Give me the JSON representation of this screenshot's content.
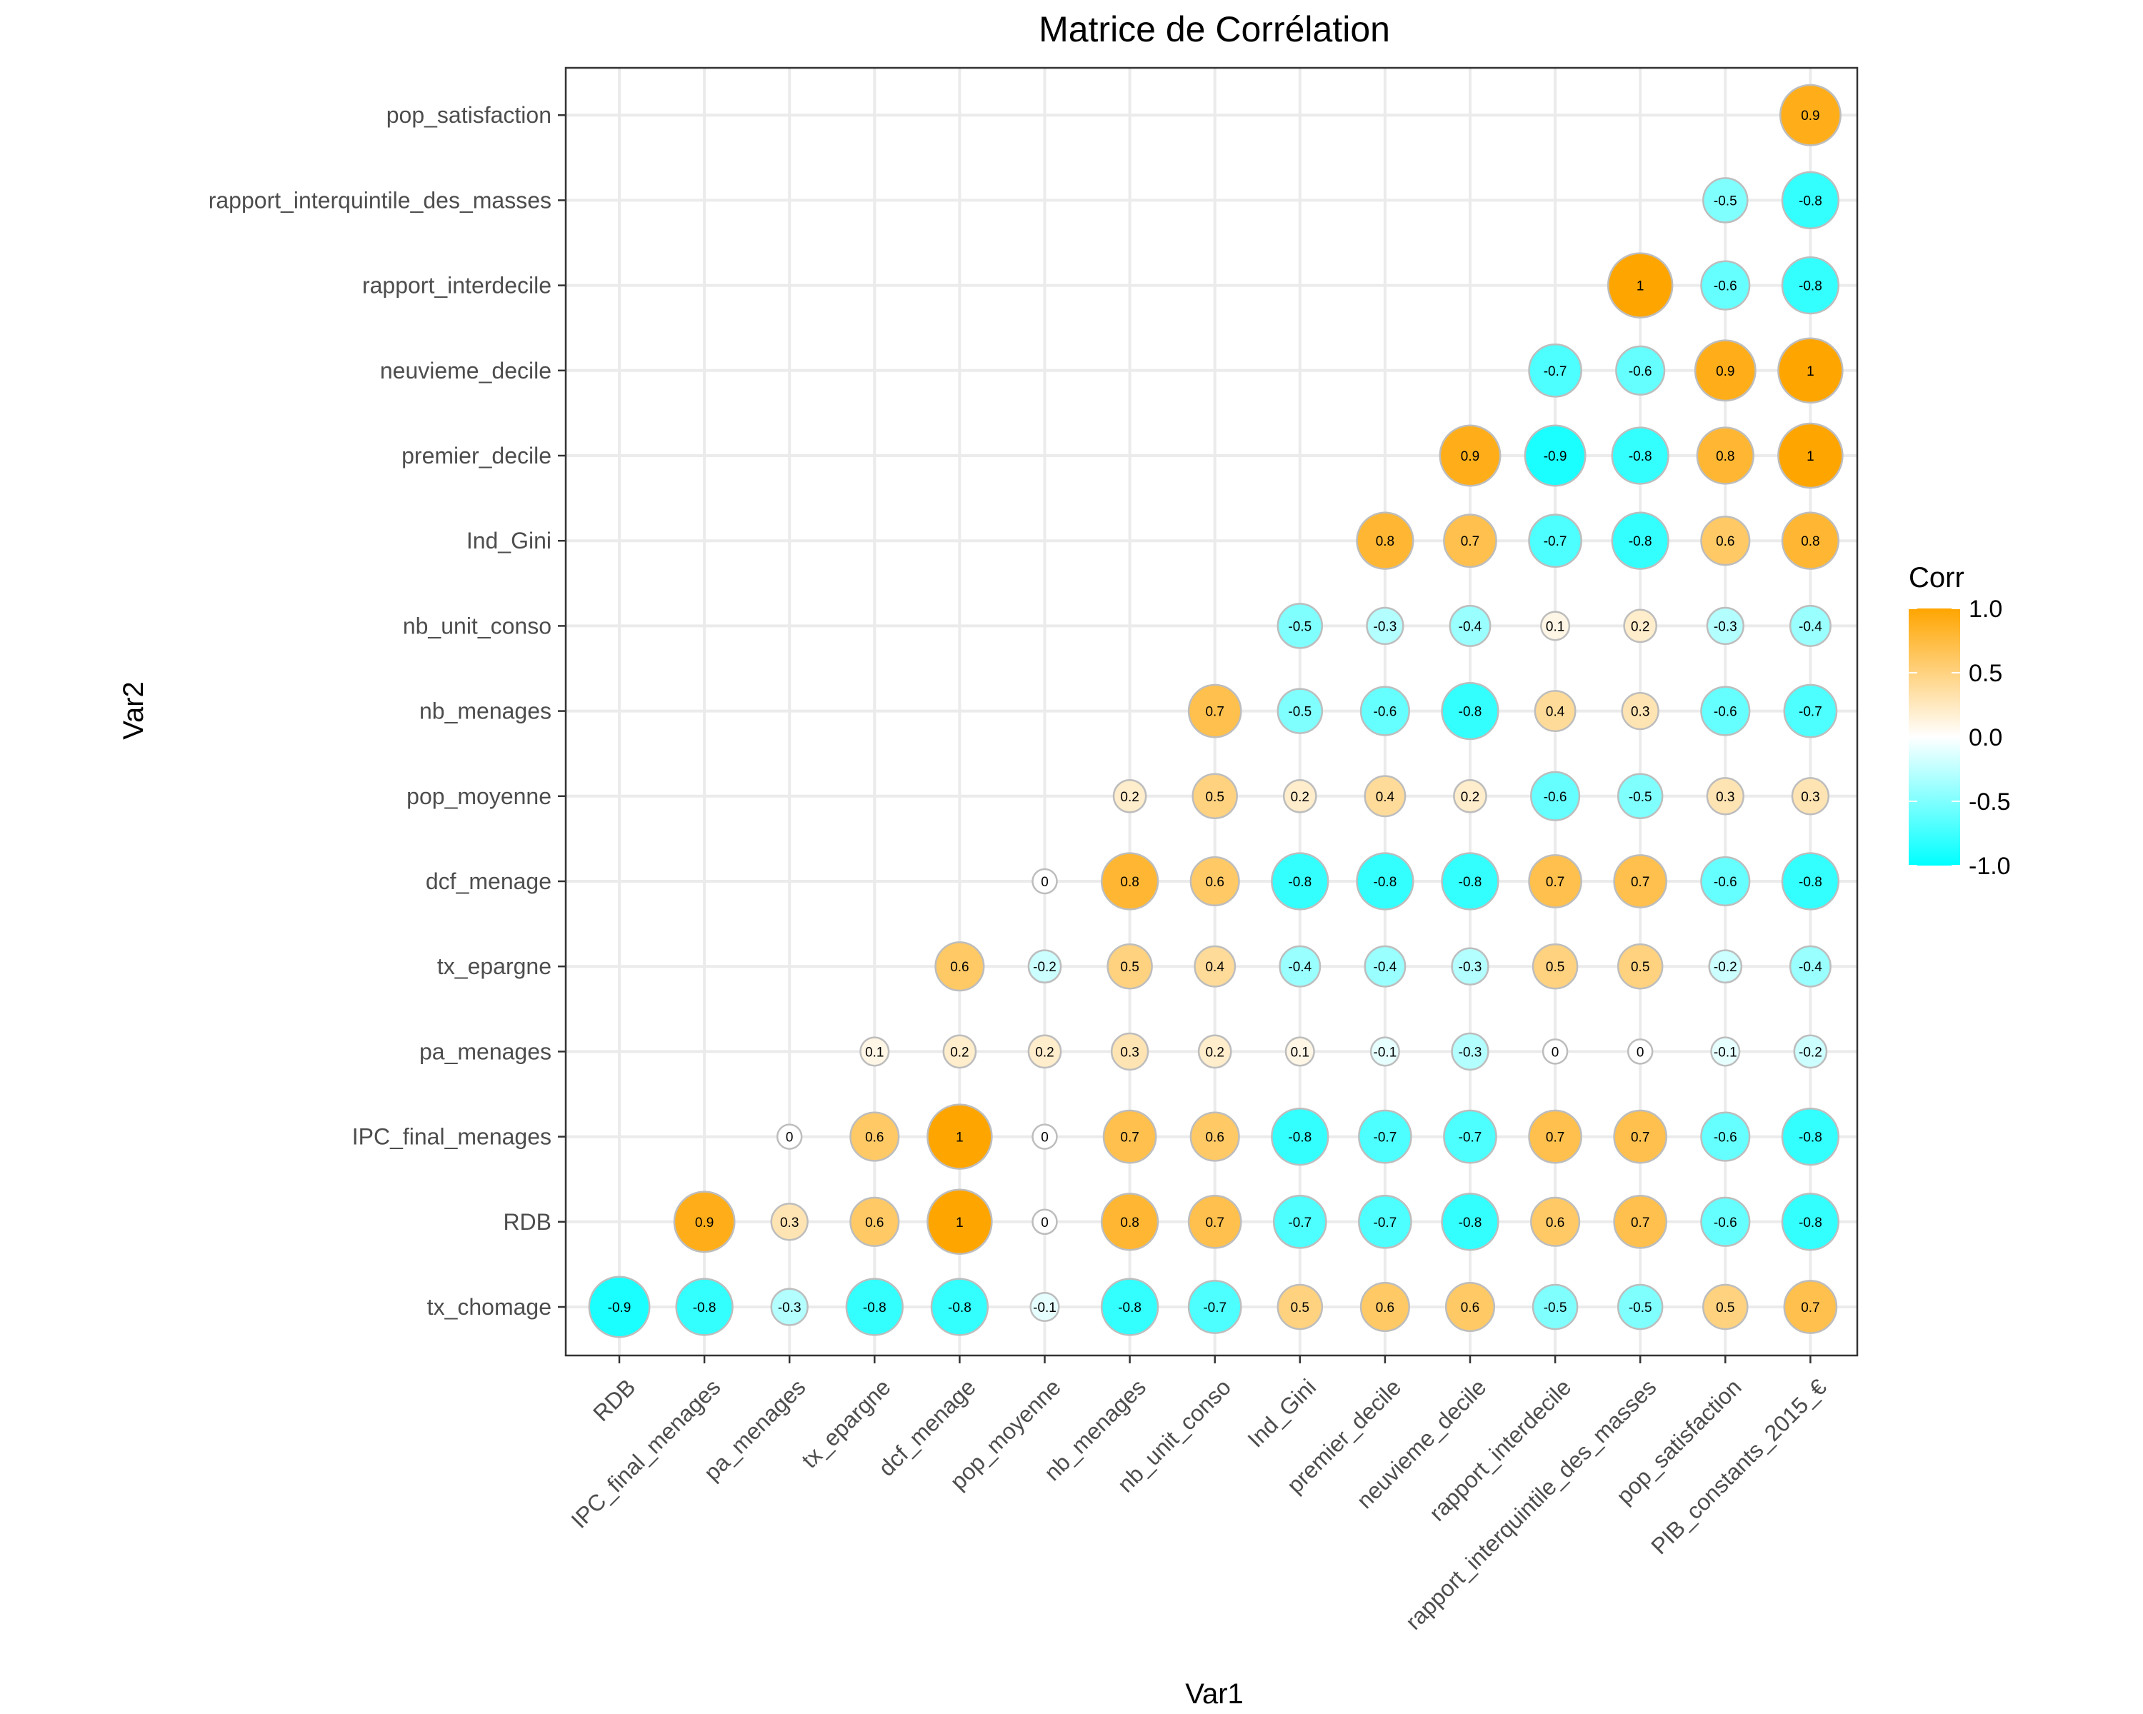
{
  "chart_data": {
    "type": "heatmap",
    "title": "Matrice de Corrélation",
    "xlabel": "Var1",
    "ylabel": "Var2",
    "x_categories": [
      "RDB",
      "IPC_final_menages",
      "pa_menages",
      "tx_epargne",
      "dcf_menage",
      "pop_moyenne",
      "nb_menages",
      "nb_unit_conso",
      "Ind_Gini",
      "premier_decile",
      "neuvieme_decile",
      "rapport_interdecile",
      "rapport_interquintile_des_masses",
      "pop_satisfaction",
      "PIB_constants_2015_€"
    ],
    "y_categories": [
      "tx_chomage",
      "RDB",
      "IPC_final_menages",
      "pa_menages",
      "tx_epargne",
      "dcf_menage",
      "pop_moyenne",
      "nb_menages",
      "nb_unit_conso",
      "Ind_Gini",
      "premier_decile",
      "neuvieme_decile",
      "rapport_interdecile",
      "rapport_interquintile_des_masses",
      "pop_satisfaction"
    ],
    "marker": "circle (size and color scale with |corr|)",
    "legend": {
      "title": "Corr",
      "placement": "right",
      "ticks": [
        "1.0",
        "0.5",
        "0.0",
        "-0.5",
        "-1.0"
      ],
      "colors": {
        "high": "#FFA500",
        "mid": "#FFFFFF",
        "low": "#00FFFF"
      },
      "range": [
        -1,
        1
      ]
    },
    "values": [
      {
        "x": "RDB",
        "y": "tx_chomage",
        "value": -0.9
      },
      {
        "x": "IPC_final_menages",
        "y": "RDB",
        "value": 0.9
      },
      {
        "x": "IPC_final_menages",
        "y": "tx_chomage",
        "value": -0.8
      },
      {
        "x": "pa_menages",
        "y": "IPC_final_menages",
        "value": 0
      },
      {
        "x": "pa_menages",
        "y": "RDB",
        "value": 0.3
      },
      {
        "x": "pa_menages",
        "y": "tx_chomage",
        "value": -0.3
      },
      {
        "x": "tx_epargne",
        "y": "pa_menages",
        "value": 0.1
      },
      {
        "x": "tx_epargne",
        "y": "IPC_final_menages",
        "value": 0.6
      },
      {
        "x": "tx_epargne",
        "y": "RDB",
        "value": 0.6
      },
      {
        "x": "tx_epargne",
        "y": "tx_chomage",
        "value": -0.8
      },
      {
        "x": "dcf_menage",
        "y": "tx_epargne",
        "value": 0.6
      },
      {
        "x": "dcf_menage",
        "y": "pa_menages",
        "value": 0.2
      },
      {
        "x": "dcf_menage",
        "y": "IPC_final_menages",
        "value": 1
      },
      {
        "x": "dcf_menage",
        "y": "RDB",
        "value": 1
      },
      {
        "x": "dcf_menage",
        "y": "tx_chomage",
        "value": -0.8
      },
      {
        "x": "pop_moyenne",
        "y": "dcf_menage",
        "value": 0
      },
      {
        "x": "pop_moyenne",
        "y": "tx_epargne",
        "value": -0.2
      },
      {
        "x": "pop_moyenne",
        "y": "pa_menages",
        "value": 0.2
      },
      {
        "x": "pop_moyenne",
        "y": "IPC_final_menages",
        "value": 0
      },
      {
        "x": "pop_moyenne",
        "y": "RDB",
        "value": 0
      },
      {
        "x": "pop_moyenne",
        "y": "tx_chomage",
        "value": -0.1
      },
      {
        "x": "nb_menages",
        "y": "pop_moyenne",
        "value": 0.2
      },
      {
        "x": "nb_menages",
        "y": "dcf_menage",
        "value": 0.8
      },
      {
        "x": "nb_menages",
        "y": "tx_epargne",
        "value": 0.5
      },
      {
        "x": "nb_menages",
        "y": "pa_menages",
        "value": 0.3
      },
      {
        "x": "nb_menages",
        "y": "IPC_final_menages",
        "value": 0.7
      },
      {
        "x": "nb_menages",
        "y": "RDB",
        "value": 0.8
      },
      {
        "x": "nb_menages",
        "y": "tx_chomage",
        "value": -0.8
      },
      {
        "x": "nb_unit_conso",
        "y": "nb_menages",
        "value": 0.7
      },
      {
        "x": "nb_unit_conso",
        "y": "pop_moyenne",
        "value": 0.5
      },
      {
        "x": "nb_unit_conso",
        "y": "dcf_menage",
        "value": 0.6
      },
      {
        "x": "nb_unit_conso",
        "y": "tx_epargne",
        "value": 0.4
      },
      {
        "x": "nb_unit_conso",
        "y": "pa_menages",
        "value": 0.2
      },
      {
        "x": "nb_unit_conso",
        "y": "IPC_final_menages",
        "value": 0.6
      },
      {
        "x": "nb_unit_conso",
        "y": "RDB",
        "value": 0.7
      },
      {
        "x": "nb_unit_conso",
        "y": "tx_chomage",
        "value": -0.7
      },
      {
        "x": "Ind_Gini",
        "y": "nb_unit_conso",
        "value": -0.5
      },
      {
        "x": "Ind_Gini",
        "y": "nb_menages",
        "value": -0.5
      },
      {
        "x": "Ind_Gini",
        "y": "pop_moyenne",
        "value": 0.2
      },
      {
        "x": "Ind_Gini",
        "y": "dcf_menage",
        "value": -0.8
      },
      {
        "x": "Ind_Gini",
        "y": "tx_epargne",
        "value": -0.4
      },
      {
        "x": "Ind_Gini",
        "y": "pa_menages",
        "value": 0.1
      },
      {
        "x": "Ind_Gini",
        "y": "IPC_final_menages",
        "value": -0.8
      },
      {
        "x": "Ind_Gini",
        "y": "RDB",
        "value": -0.7
      },
      {
        "x": "Ind_Gini",
        "y": "tx_chomage",
        "value": 0.5
      },
      {
        "x": "premier_decile",
        "y": "Ind_Gini",
        "value": 0.8
      },
      {
        "x": "premier_decile",
        "y": "nb_unit_conso",
        "value": -0.3
      },
      {
        "x": "premier_decile",
        "y": "nb_menages",
        "value": -0.6
      },
      {
        "x": "premier_decile",
        "y": "pop_moyenne",
        "value": 0.4
      },
      {
        "x": "premier_decile",
        "y": "dcf_menage",
        "value": -0.8
      },
      {
        "x": "premier_decile",
        "y": "tx_epargne",
        "value": -0.4
      },
      {
        "x": "premier_decile",
        "y": "pa_menages",
        "value": -0.1
      },
      {
        "x": "premier_decile",
        "y": "IPC_final_menages",
        "value": -0.7
      },
      {
        "x": "premier_decile",
        "y": "RDB",
        "value": -0.7
      },
      {
        "x": "premier_decile",
        "y": "tx_chomage",
        "value": 0.6
      },
      {
        "x": "neuvieme_decile",
        "y": "premier_decile",
        "value": 0.9
      },
      {
        "x": "neuvieme_decile",
        "y": "Ind_Gini",
        "value": 0.7
      },
      {
        "x": "neuvieme_decile",
        "y": "nb_unit_conso",
        "value": -0.4
      },
      {
        "x": "neuvieme_decile",
        "y": "nb_menages",
        "value": -0.8
      },
      {
        "x": "neuvieme_decile",
        "y": "pop_moyenne",
        "value": 0.2
      },
      {
        "x": "neuvieme_decile",
        "y": "dcf_menage",
        "value": -0.8
      },
      {
        "x": "neuvieme_decile",
        "y": "tx_epargne",
        "value": -0.3
      },
      {
        "x": "neuvieme_decile",
        "y": "pa_menages",
        "value": -0.3
      },
      {
        "x": "neuvieme_decile",
        "y": "IPC_final_menages",
        "value": -0.7
      },
      {
        "x": "neuvieme_decile",
        "y": "RDB",
        "value": -0.8
      },
      {
        "x": "neuvieme_decile",
        "y": "tx_chomage",
        "value": 0.6
      },
      {
        "x": "rapport_interdecile",
        "y": "neuvieme_decile",
        "value": -0.7
      },
      {
        "x": "rapport_interdecile",
        "y": "premier_decile",
        "value": -0.9
      },
      {
        "x": "rapport_interdecile",
        "y": "Ind_Gini",
        "value": -0.7
      },
      {
        "x": "rapport_interdecile",
        "y": "nb_unit_conso",
        "value": 0.1
      },
      {
        "x": "rapport_interdecile",
        "y": "nb_menages",
        "value": 0.4
      },
      {
        "x": "rapport_interdecile",
        "y": "pop_moyenne",
        "value": -0.6
      },
      {
        "x": "rapport_interdecile",
        "y": "dcf_menage",
        "value": 0.7
      },
      {
        "x": "rapport_interdecile",
        "y": "tx_epargne",
        "value": 0.5
      },
      {
        "x": "rapport_interdecile",
        "y": "pa_menages",
        "value": 0
      },
      {
        "x": "rapport_interdecile",
        "y": "IPC_final_menages",
        "value": 0.7
      },
      {
        "x": "rapport_interdecile",
        "y": "RDB",
        "value": 0.6
      },
      {
        "x": "rapport_interdecile",
        "y": "tx_chomage",
        "value": -0.5
      },
      {
        "x": "rapport_interquintile_des_masses",
        "y": "rapport_interdecile",
        "value": 1
      },
      {
        "x": "rapport_interquintile_des_masses",
        "y": "neuvieme_decile",
        "value": -0.6
      },
      {
        "x": "rapport_interquintile_des_masses",
        "y": "premier_decile",
        "value": -0.8
      },
      {
        "x": "rapport_interquintile_des_masses",
        "y": "Ind_Gini",
        "value": -0.8
      },
      {
        "x": "rapport_interquintile_des_masses",
        "y": "nb_unit_conso",
        "value": 0.2
      },
      {
        "x": "rapport_interquintile_des_masses",
        "y": "nb_menages",
        "value": 0.3
      },
      {
        "x": "rapport_interquintile_des_masses",
        "y": "pop_moyenne",
        "value": -0.5
      },
      {
        "x": "rapport_interquintile_des_masses",
        "y": "dcf_menage",
        "value": 0.7
      },
      {
        "x": "rapport_interquintile_des_masses",
        "y": "tx_epargne",
        "value": 0.5
      },
      {
        "x": "rapport_interquintile_des_masses",
        "y": "pa_menages",
        "value": 0
      },
      {
        "x": "rapport_interquintile_des_masses",
        "y": "IPC_final_menages",
        "value": 0.7
      },
      {
        "x": "rapport_interquintile_des_masses",
        "y": "RDB",
        "value": 0.7
      },
      {
        "x": "rapport_interquintile_des_masses",
        "y": "tx_chomage",
        "value": -0.5
      },
      {
        "x": "pop_satisfaction",
        "y": "rapport_interquintile_des_masses",
        "value": -0.5
      },
      {
        "x": "pop_satisfaction",
        "y": "rapport_interdecile",
        "value": -0.6
      },
      {
        "x": "pop_satisfaction",
        "y": "neuvieme_decile",
        "value": 0.9
      },
      {
        "x": "pop_satisfaction",
        "y": "premier_decile",
        "value": 0.8
      },
      {
        "x": "pop_satisfaction",
        "y": "Ind_Gini",
        "value": 0.6
      },
      {
        "x": "pop_satisfaction",
        "y": "nb_unit_conso",
        "value": -0.3
      },
      {
        "x": "pop_satisfaction",
        "y": "nb_menages",
        "value": -0.6
      },
      {
        "x": "pop_satisfaction",
        "y": "pop_moyenne",
        "value": 0.3
      },
      {
        "x": "pop_satisfaction",
        "y": "dcf_menage",
        "value": -0.6
      },
      {
        "x": "pop_satisfaction",
        "y": "tx_epargne",
        "value": -0.2
      },
      {
        "x": "pop_satisfaction",
        "y": "pa_menages",
        "value": -0.1
      },
      {
        "x": "pop_satisfaction",
        "y": "IPC_final_menages",
        "value": -0.6
      },
      {
        "x": "pop_satisfaction",
        "y": "RDB",
        "value": -0.6
      },
      {
        "x": "pop_satisfaction",
        "y": "tx_chomage",
        "value": 0.5
      },
      {
        "x": "PIB_constants_2015_€",
        "y": "pop_satisfaction",
        "value": 0.9
      },
      {
        "x": "PIB_constants_2015_€",
        "y": "rapport_interquintile_des_masses",
        "value": -0.8
      },
      {
        "x": "PIB_constants_2015_€",
        "y": "rapport_interdecile",
        "value": -0.8
      },
      {
        "x": "PIB_constants_2015_€",
        "y": "neuvieme_decile",
        "value": 1
      },
      {
        "x": "PIB_constants_2015_€",
        "y": "premier_decile",
        "value": 1
      },
      {
        "x": "PIB_constants_2015_€",
        "y": "Ind_Gini",
        "value": 0.8
      },
      {
        "x": "PIB_constants_2015_€",
        "y": "nb_unit_conso",
        "value": -0.4
      },
      {
        "x": "PIB_constants_2015_€",
        "y": "nb_menages",
        "value": -0.7
      },
      {
        "x": "PIB_constants_2015_€",
        "y": "pop_moyenne",
        "value": 0.3
      },
      {
        "x": "PIB_constants_2015_€",
        "y": "dcf_menage",
        "value": -0.8
      },
      {
        "x": "PIB_constants_2015_€",
        "y": "tx_epargne",
        "value": -0.4
      },
      {
        "x": "PIB_constants_2015_€",
        "y": "pa_menages",
        "value": -0.2
      },
      {
        "x": "PIB_constants_2015_€",
        "y": "IPC_final_menages",
        "value": -0.8
      },
      {
        "x": "PIB_constants_2015_€",
        "y": "RDB",
        "value": -0.8
      },
      {
        "x": "PIB_constants_2015_€",
        "y": "tx_chomage",
        "value": 0.7
      }
    ]
  }
}
